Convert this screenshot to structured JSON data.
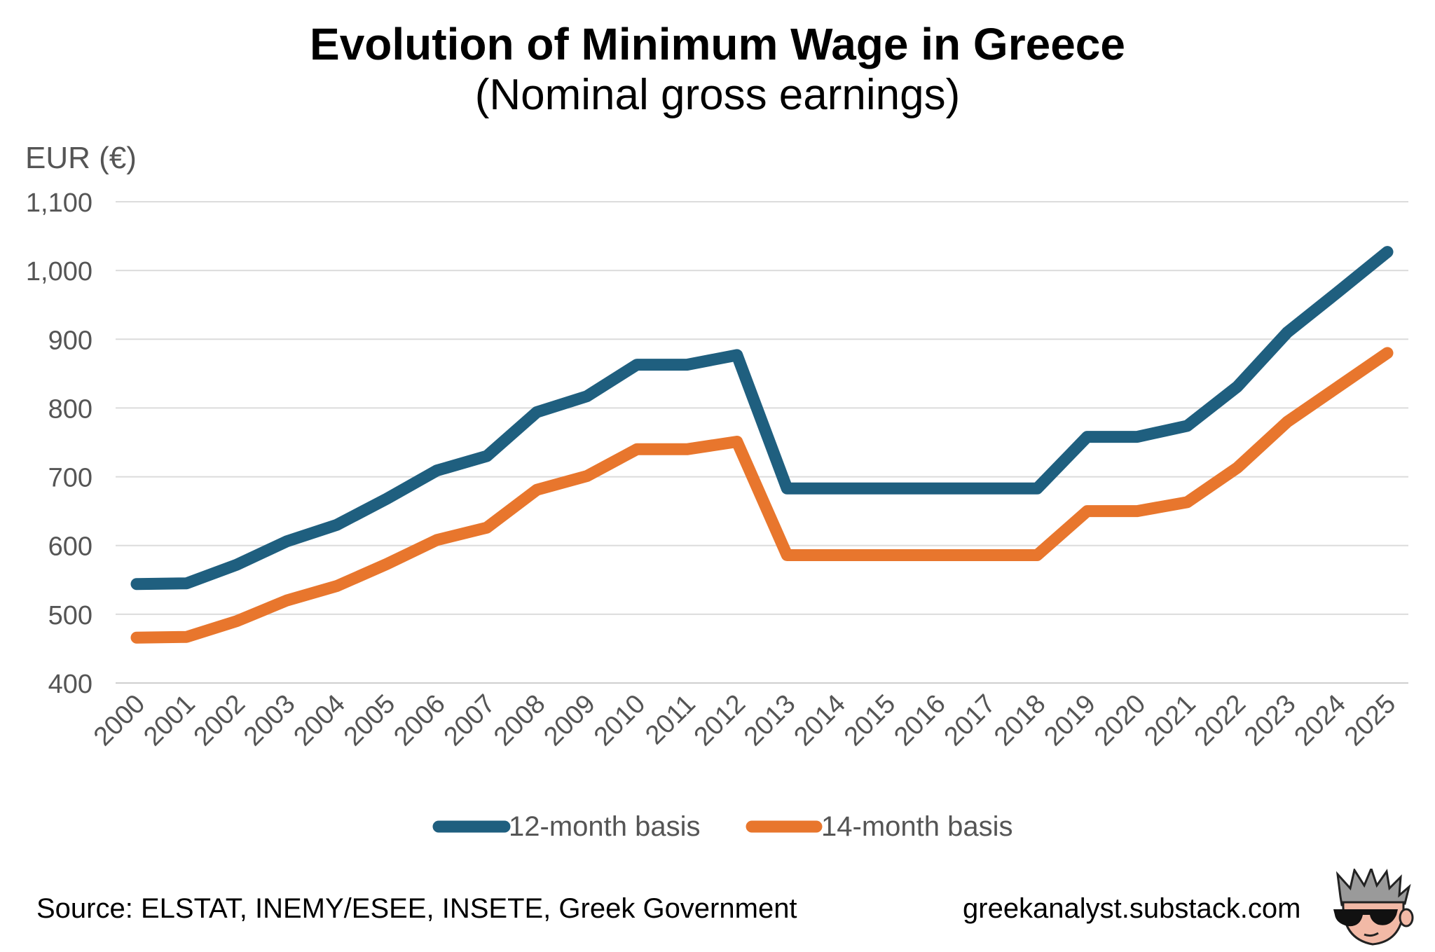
{
  "chart_data": {
    "type": "line",
    "title": "Evolution of Minimum Wage in Greece",
    "subtitle": "(Nominal gross earnings)",
    "ylabel": "EUR (€)",
    "xlabel": "",
    "ylim": [
      400,
      1100
    ],
    "yticks": [
      "400",
      "500",
      "600",
      "700",
      "800",
      "900",
      "1,000",
      "1,100"
    ],
    "ytick_values": [
      400,
      500,
      600,
      700,
      800,
      900,
      1000,
      1100
    ],
    "grid": true,
    "legend_position": "bottom",
    "x": [
      "2000",
      "2001",
      "2002",
      "2003",
      "2004",
      "2005",
      "2006",
      "2007",
      "2008",
      "2009",
      "2010",
      "2011",
      "2012",
      "2013",
      "2014",
      "2015",
      "2016",
      "2017",
      "2018",
      "2019",
      "2020",
      "2021",
      "2022",
      "2023",
      "2024",
      "2025"
    ],
    "series": [
      {
        "name": "12-month basis",
        "color": "#1f5f7f",
        "values": [
          544,
          545,
          572,
          606,
          630,
          668,
          709,
          730,
          794,
          817,
          863,
          863,
          877,
          683,
          683,
          683,
          683,
          683,
          683,
          758,
          758,
          774,
          831,
          910,
          968,
          1027
        ]
      },
      {
        "name": "14-month basis",
        "color": "#e8762d",
        "values": [
          466,
          467,
          490,
          520,
          541,
          573,
          608,
          626,
          681,
          701,
          740,
          740,
          751,
          586,
          586,
          586,
          586,
          586,
          586,
          650,
          650,
          663,
          713,
          780,
          830,
          880
        ]
      }
    ]
  },
  "footer": {
    "source": "Source: ELSTAT, INEMY/ESEE, INSETE, Greek Government",
    "site": "greekanalyst.substack.com"
  }
}
